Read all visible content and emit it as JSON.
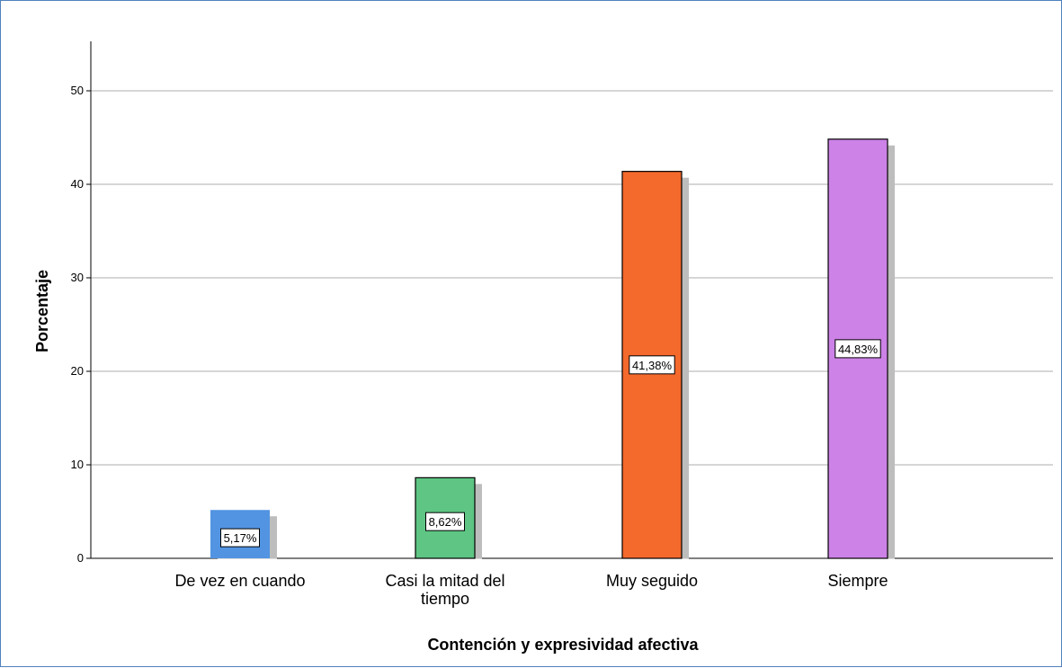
{
  "chart_data": {
    "type": "bar",
    "title": "",
    "xlabel": "Contención y expresividad afectiva",
    "ylabel": "Porcentaje",
    "categories": [
      [
        "De vez en cuando"
      ],
      [
        "Casi la mitad del",
        "tiempo"
      ],
      [
        "Muy seguido"
      ],
      [
        "Siempre"
      ]
    ],
    "values": [
      5.17,
      8.62,
      41.38,
      44.83
    ],
    "data_labels": [
      "5,17%",
      "8,62%",
      "41,38%",
      "44,83%"
    ],
    "colors": [
      "#5294e2",
      "#5ec584",
      "#f4692c",
      "#cc82e6"
    ],
    "shadow_color": "#bdbdbd",
    "ylim": [
      0,
      55
    ],
    "yticks": [
      0,
      10,
      20,
      30,
      40,
      50
    ],
    "grid": true
  }
}
